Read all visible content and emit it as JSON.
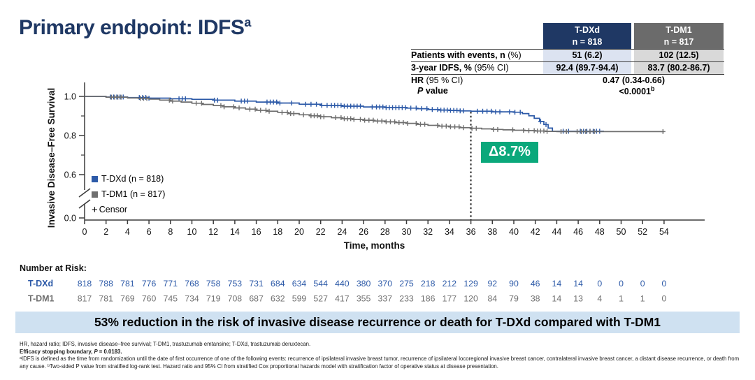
{
  "title": {
    "text": "Primary endpoint: IDFS",
    "sup": "a"
  },
  "colors": {
    "title_navy": "#1f3864",
    "tdxd_blue": "#2d5aa8",
    "tdm1_gray": "#6f6f6f",
    "header_navy_bg": "#1f3864",
    "header_gray_bg": "#6b6b6b",
    "cell_blue_bg": "#dce3f1",
    "cell_gray_bg": "#d9d9d9",
    "delta_green": "#0aa87b",
    "banner_blue_bg": "#cfe1f1"
  },
  "stat_table": {
    "header": [
      {
        "name": "T-DXd",
        "n": "n = 818"
      },
      {
        "name": "T-DM1",
        "n": "n = 817"
      }
    ],
    "row1": {
      "label_b": "Patients with events, n",
      "label_r": " (%)",
      "c1_b": "51",
      "c1_r": " (6.2)",
      "c2_b": "102",
      "c2_r": " (12.5)"
    },
    "row2": {
      "label_b": "3-year IDFS, %",
      "label_r": " (95% CI)",
      "c1_b": "92.4",
      "c1_r": " (89.7-94.4)",
      "c2_b": "83.7",
      "c2_r": " (80.2-86.7)"
    },
    "row3": {
      "label_b": "HR",
      "label_r": " (95 % CI)",
      "val_b": "0.47",
      "val_r": " (0.34-0.66)"
    },
    "row4": {
      "label_i": "P",
      "label_r": " value",
      "val_b": "<0.0001",
      "sup": "b"
    }
  },
  "legend": {
    "items": [
      {
        "label": "T-DXd (n = 818)"
      },
      {
        "label": "T-DM1 (n = 817)"
      }
    ],
    "censor_plus": "+",
    "censor_label": "Censor"
  },
  "delta_label": "Δ8.7%",
  "banner": "53% reduction in the risk of invasive disease recurrence or death for T-DXd compared with T-DM1",
  "footnotes": {
    "abbrev": "HR, hazard ratio; IDFS, invasive disease–free survival; T-DM1, trastuzumab emtansine; T-DXd, trastuzumab deruxtecan.",
    "esb_prefix": "Efficacy stopping boundary, ",
    "esb_p": "P",
    "esb_suffix": " = 0.0183.",
    "definitions": "ᵃIDFS is defined as the time from randomization until the date of first occurrence of one of the following events: recurrence of ipsilateral invasive breast tumor, recurrence of ipsilateral locoregional invasive breast cancer, contralateral invasive breast cancer, a distant disease recurrence, or death from any cause. ᵇTwo-sided P value from stratified log-rank test. Hazard ratio and 95% CI from stratified Cox proportional hazards model with stratification factor of operative status at disease presentation."
  },
  "chart_data": {
    "type": "line",
    "subtype": "kaplan-meier-step",
    "title": "",
    "xlabel": "Time, months",
    "ylabel": "Invasive Disease–Free Survival",
    "xlim": [
      0,
      54
    ],
    "xtick_step": 2,
    "yticks_major": [
      1.0,
      0.8,
      0.6,
      0.0
    ],
    "ytick_labels": [
      "1.0",
      "0.8",
      "0.6",
      "0.0"
    ],
    "yticks_minor": [
      0.9,
      0.7
    ],
    "axis_break_between": [
      0.6,
      0.0
    ],
    "grid": false,
    "legend_position": "inside-left",
    "annotation": {
      "x": 36,
      "label": "Δ8.7%",
      "style": "dotted-vertical-line"
    },
    "series": [
      {
        "name": "T-DXd",
        "n": 818,
        "color": "#2d5aa8",
        "steps": [
          [
            0,
            1.0
          ],
          [
            2,
            0.997
          ],
          [
            4,
            0.994
          ],
          [
            6,
            0.991
          ],
          [
            8,
            0.988
          ],
          [
            10,
            0.985
          ],
          [
            12,
            0.981
          ],
          [
            14,
            0.976
          ],
          [
            16,
            0.971
          ],
          [
            18,
            0.966
          ],
          [
            20,
            0.96
          ],
          [
            22,
            0.954
          ],
          [
            24,
            0.95
          ],
          [
            26,
            0.946
          ],
          [
            28,
            0.943
          ],
          [
            30,
            0.94
          ],
          [
            31,
            0.937
          ],
          [
            32,
            0.933
          ],
          [
            33,
            0.93
          ],
          [
            34,
            0.928
          ],
          [
            35,
            0.926
          ],
          [
            36,
            0.924
          ],
          [
            38,
            0.921
          ],
          [
            40,
            0.919
          ],
          [
            40.8,
            0.912
          ],
          [
            41.4,
            0.901
          ],
          [
            41.9,
            0.888
          ],
          [
            42.4,
            0.872
          ],
          [
            42.8,
            0.856
          ],
          [
            43.2,
            0.838
          ],
          [
            43.6,
            0.822
          ],
          [
            48.4,
            0.822
          ]
        ],
        "censors": [
          2.4,
          2.7,
          3.0,
          3.3,
          3.6,
          5.1,
          5.4,
          5.7,
          6.0,
          8.8,
          9.1,
          9.4,
          12.1,
          12.4,
          14.6,
          14.9,
          15.2,
          17.0,
          17.3,
          17.6,
          17.9,
          18.2,
          19.3,
          20.6,
          21.1,
          21.6,
          22.1,
          22.6,
          23.0,
          23.3,
          23.6,
          23.9,
          24.2,
          24.5,
          24.8,
          25.1,
          25.4,
          25.7,
          26.8,
          27.2,
          27.5,
          27.8,
          28.1,
          28.4,
          28.7,
          29.0,
          29.3,
          29.6,
          29.9,
          30.4,
          30.9,
          31.4,
          31.9,
          32.4,
          32.9,
          33.2,
          33.5,
          33.8,
          34.1,
          34.4,
          34.7,
          35.0,
          35.3,
          36.6,
          37.1,
          37.5,
          37.9,
          38.3,
          38.7,
          39.6,
          40.1,
          40.6,
          42.5,
          43.0,
          44.6,
          45.1,
          46.2,
          46.5,
          46.8,
          47.1,
          47.4,
          47.7,
          48.0
        ]
      },
      {
        "name": "T-DM1",
        "n": 817,
        "color": "#6f6f6f",
        "steps": [
          [
            0,
            1.0
          ],
          [
            2,
            0.996
          ],
          [
            4,
            0.992
          ],
          [
            5,
            0.99
          ],
          [
            6,
            0.986
          ],
          [
            7,
            0.981
          ],
          [
            8,
            0.976
          ],
          [
            9,
            0.971
          ],
          [
            10,
            0.965
          ],
          [
            11,
            0.959
          ],
          [
            12,
            0.953
          ],
          [
            13,
            0.947
          ],
          [
            14,
            0.941
          ],
          [
            15,
            0.935
          ],
          [
            16,
            0.929
          ],
          [
            17,
            0.924
          ],
          [
            18,
            0.918
          ],
          [
            19,
            0.912
          ],
          [
            20,
            0.906
          ],
          [
            21,
            0.901
          ],
          [
            22,
            0.896
          ],
          [
            23,
            0.891
          ],
          [
            24,
            0.886
          ],
          [
            25,
            0.882
          ],
          [
            26,
            0.878
          ],
          [
            27,
            0.874
          ],
          [
            28,
            0.87
          ],
          [
            29,
            0.866
          ],
          [
            30,
            0.862
          ],
          [
            31,
            0.857
          ],
          [
            32,
            0.852
          ],
          [
            33,
            0.848
          ],
          [
            34,
            0.844
          ],
          [
            35,
            0.84
          ],
          [
            36,
            0.837
          ],
          [
            37,
            0.834
          ],
          [
            38,
            0.831
          ],
          [
            39,
            0.829
          ],
          [
            40,
            0.827
          ],
          [
            41,
            0.825
          ],
          [
            42,
            0.823
          ],
          [
            43,
            0.821
          ],
          [
            44,
            0.82
          ],
          [
            54,
            0.82
          ]
        ],
        "censors": [
          2.5,
          2.8,
          3.1,
          3.4,
          5.2,
          5.5,
          5.8,
          7.9,
          8.2,
          10.4,
          10.9,
          12.7,
          13.0,
          13.9,
          14.4,
          15.4,
          15.9,
          16.4,
          16.9,
          17.2,
          18.4,
          18.9,
          19.2,
          19.5,
          20.4,
          21.1,
          21.4,
          21.7,
          22.0,
          22.3,
          23.4,
          23.9,
          24.2,
          24.5,
          24.8,
          25.1,
          25.7,
          26.1,
          26.5,
          26.9,
          27.3,
          27.7,
          28.1,
          28.5,
          28.9,
          29.3,
          29.7,
          30.1,
          30.9,
          31.3,
          31.7,
          32.9,
          33.3,
          33.7,
          34.1,
          34.5,
          34.9,
          35.3,
          36.1,
          36.5,
          38.1,
          38.5,
          39.9,
          40.9,
          41.4,
          41.9,
          42.2,
          42.5,
          42.8,
          43.1,
          44.4,
          44.9,
          45.9,
          46.3,
          46.7,
          47.1,
          47.5,
          53.9
        ]
      }
    ],
    "at_risk": {
      "heading": "Number at Risk:",
      "rows": [
        {
          "name": "T-DXd",
          "color": "#2d5aa8",
          "values": [
            818,
            788,
            781,
            776,
            771,
            768,
            758,
            753,
            731,
            684,
            634,
            544,
            440,
            380,
            370,
            275,
            218,
            212,
            129,
            92,
            90,
            46,
            14,
            14,
            0,
            0,
            0,
            0
          ]
        },
        {
          "name": "T-DM1",
          "color": "#6f6f6f",
          "values": [
            817,
            781,
            769,
            760,
            745,
            734,
            719,
            708,
            687,
            632,
            599,
            527,
            417,
            355,
            337,
            233,
            186,
            177,
            120,
            84,
            79,
            38,
            14,
            13,
            4,
            1,
            1,
            0
          ]
        }
      ]
    }
  }
}
